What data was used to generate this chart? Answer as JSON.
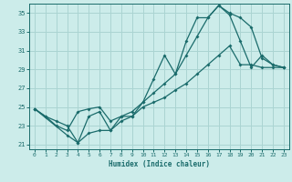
{
  "xlabel": "Humidex (Indice chaleur)",
  "bg_color": "#ccecea",
  "grid_color": "#aad4d2",
  "line_color": "#1a6b6b",
  "xlim": [
    -0.5,
    23.5
  ],
  "ylim": [
    20.5,
    36.0
  ],
  "xticks": [
    0,
    1,
    2,
    3,
    4,
    5,
    6,
    7,
    8,
    9,
    10,
    11,
    12,
    13,
    14,
    15,
    16,
    17,
    18,
    19,
    20,
    21,
    22,
    23
  ],
  "yticks": [
    21,
    23,
    25,
    27,
    29,
    31,
    33,
    35
  ],
  "line1_x": [
    0,
    1,
    2,
    3,
    4,
    5,
    6,
    7,
    8,
    9,
    10,
    11,
    12,
    13,
    14,
    15,
    16,
    17,
    18,
    19,
    20,
    21,
    22,
    23
  ],
  "line1_y": [
    24.8,
    24.0,
    23.5,
    23.0,
    21.2,
    22.2,
    22.5,
    22.5,
    23.5,
    24.0,
    25.5,
    26.5,
    27.5,
    28.5,
    30.5,
    32.5,
    34.5,
    35.8,
    35.0,
    34.5,
    33.5,
    30.2,
    29.5,
    29.2
  ],
  "line2_x": [
    0,
    3,
    4,
    5,
    6,
    7,
    8,
    9,
    10,
    11,
    12,
    13,
    14,
    15,
    16,
    17,
    18,
    19,
    20,
    21,
    22,
    23
  ],
  "line2_y": [
    24.8,
    22.0,
    21.2,
    24.0,
    24.5,
    22.5,
    24.0,
    24.5,
    25.5,
    28.0,
    30.5,
    28.5,
    32.0,
    34.5,
    34.5,
    35.8,
    34.8,
    32.0,
    29.2,
    30.5,
    29.5,
    29.2
  ],
  "line3_x": [
    0,
    1,
    2,
    3,
    4,
    5,
    6,
    7,
    8,
    9,
    10,
    11,
    12,
    13,
    14,
    15,
    16,
    17,
    18,
    19,
    20,
    21,
    22,
    23
  ],
  "line3_y": [
    24.8,
    24.0,
    23.0,
    22.5,
    24.5,
    24.8,
    25.0,
    23.5,
    24.0,
    24.0,
    25.0,
    25.5,
    26.0,
    26.8,
    27.5,
    28.5,
    29.5,
    30.5,
    31.5,
    29.5,
    29.5,
    29.2,
    29.2,
    29.2
  ]
}
